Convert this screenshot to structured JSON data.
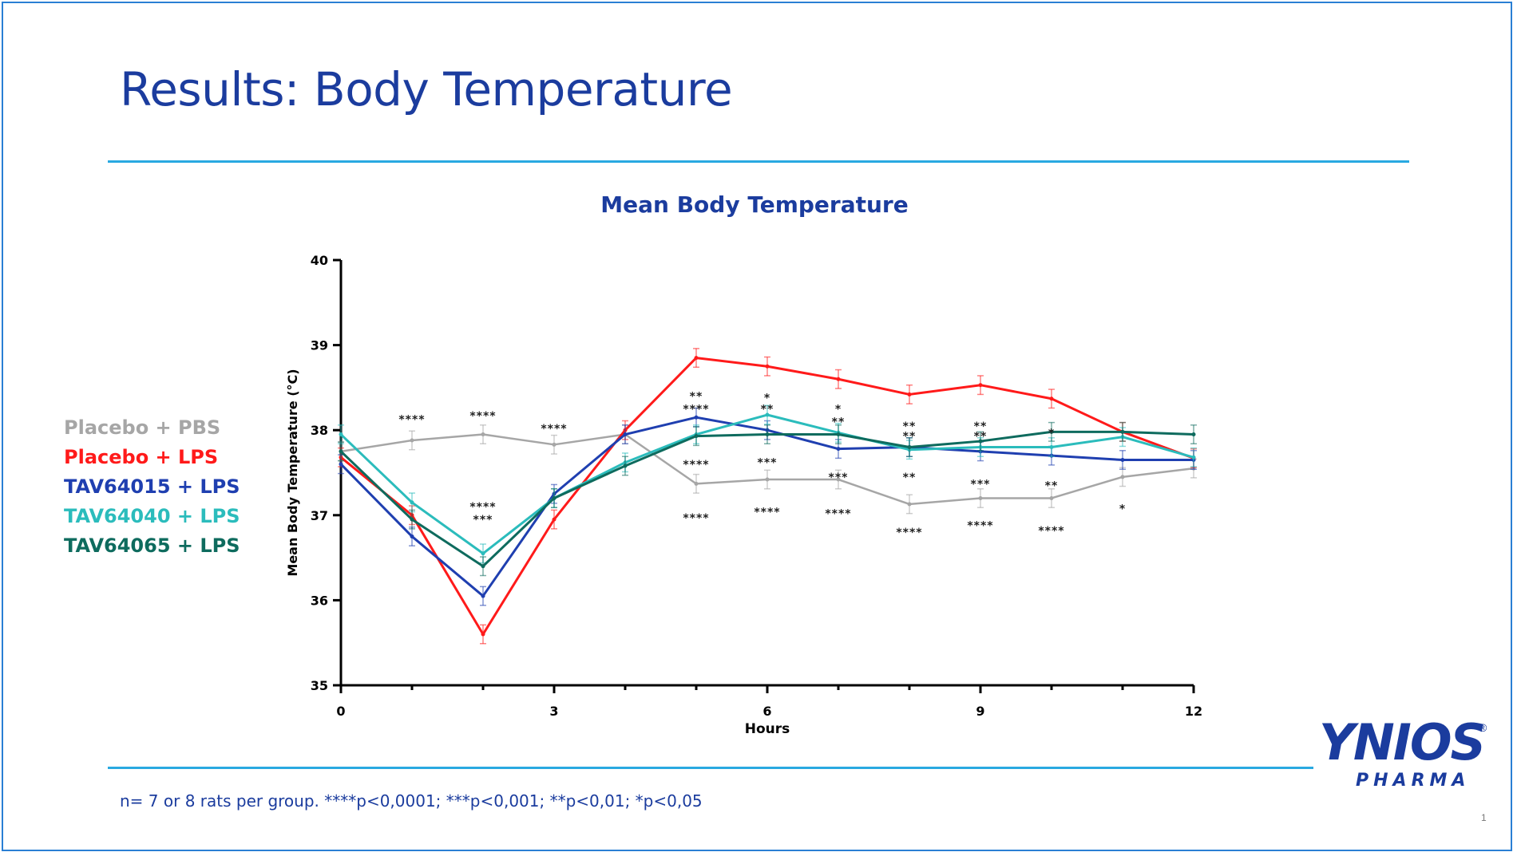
{
  "slide": {
    "title": "Results: Body Temperature",
    "footnote": "n= 7 or 8 rats per group. ****p<0,0001;  ***p<0,001;  **p<0,01;  *p<0,05",
    "page_number": "1",
    "accent_color": "#29a9e1",
    "title_color": "#1b3c9e"
  },
  "logo": {
    "main": "YNIOS",
    "registered": "®",
    "sub": "PHARMA"
  },
  "chart_data": {
    "type": "line",
    "title": "Mean Body Temperature",
    "xlabel": "Hours",
    "ylabel": "Mean Body Temperature (°C)",
    "xlim": [
      0,
      12
    ],
    "ylim": [
      35,
      40
    ],
    "xticks": [
      0,
      3,
      6,
      9,
      12
    ],
    "yticks": [
      35,
      36,
      37,
      38,
      39,
      40
    ],
    "grid": false,
    "legend_position": "left",
    "x": [
      0,
      1,
      2,
      3,
      4,
      5,
      6,
      7,
      8,
      9,
      10,
      11,
      12
    ],
    "series": [
      {
        "name": "Placebo + PBS",
        "color": "#a6a6a6",
        "values": [
          37.75,
          37.88,
          37.95,
          37.83,
          37.95,
          37.37,
          37.42,
          37.42,
          37.13,
          37.2,
          37.2,
          37.45,
          37.55
        ]
      },
      {
        "name": "Placebo + LPS",
        "color": "#ff1a1a",
        "values": [
          37.68,
          37.0,
          35.6,
          36.95,
          38.0,
          38.85,
          38.75,
          38.6,
          38.42,
          38.53,
          38.37,
          37.98,
          37.67
        ]
      },
      {
        "name": "TAV64015 + LPS",
        "color": "#1f3fb0",
        "values": [
          37.6,
          36.75,
          36.05,
          37.25,
          37.95,
          38.15,
          38.0,
          37.78,
          37.8,
          37.75,
          37.7,
          37.65,
          37.65
        ]
      },
      {
        "name": "TAV64040 + LPS",
        "color": "#2bbcbc",
        "values": [
          37.95,
          37.15,
          36.55,
          37.2,
          37.62,
          37.95,
          38.18,
          37.97,
          37.77,
          37.8,
          37.8,
          37.92,
          37.68
        ]
      },
      {
        "name": "TAV64065 + LPS",
        "color": "#0e6b5e",
        "values": [
          37.75,
          36.95,
          36.4,
          37.2,
          37.58,
          37.93,
          37.95,
          37.95,
          37.8,
          37.87,
          37.98,
          37.98,
          37.95
        ]
      }
    ],
    "annotations": [
      {
        "x": 1,
        "y": 38.13,
        "text": "****"
      },
      {
        "x": 2,
        "y": 38.17,
        "text": "****"
      },
      {
        "x": 2,
        "y": 37.1,
        "text": "****"
      },
      {
        "x": 2,
        "y": 36.95,
        "text": "***"
      },
      {
        "x": 3,
        "y": 38.02,
        "text": "****"
      },
      {
        "x": 5,
        "y": 38.4,
        "text": "**"
      },
      {
        "x": 5,
        "y": 38.25,
        "text": "****"
      },
      {
        "x": 5,
        "y": 37.6,
        "text": "****"
      },
      {
        "x": 5,
        "y": 36.97,
        "text": "****"
      },
      {
        "x": 6,
        "y": 38.38,
        "text": "*"
      },
      {
        "x": 6,
        "y": 38.25,
        "text": "**"
      },
      {
        "x": 6,
        "y": 37.62,
        "text": "***"
      },
      {
        "x": 6,
        "y": 37.04,
        "text": "****"
      },
      {
        "x": 7,
        "y": 38.25,
        "text": "*"
      },
      {
        "x": 7,
        "y": 38.1,
        "text": "**"
      },
      {
        "x": 7,
        "y": 37.45,
        "text": "***"
      },
      {
        "x": 7,
        "y": 37.02,
        "text": "****"
      },
      {
        "x": 8,
        "y": 38.05,
        "text": "**"
      },
      {
        "x": 8,
        "y": 37.93,
        "text": "**"
      },
      {
        "x": 8,
        "y": 37.45,
        "text": "**"
      },
      {
        "x": 8,
        "y": 36.8,
        "text": "****"
      },
      {
        "x": 9,
        "y": 38.05,
        "text": "**"
      },
      {
        "x": 9,
        "y": 37.93,
        "text": "**"
      },
      {
        "x": 9,
        "y": 37.37,
        "text": "***"
      },
      {
        "x": 9,
        "y": 36.88,
        "text": "****"
      },
      {
        "x": 10,
        "y": 37.97,
        "text": "*"
      },
      {
        "x": 10,
        "y": 37.35,
        "text": "**"
      },
      {
        "x": 10,
        "y": 36.82,
        "text": "****"
      },
      {
        "x": 11,
        "y": 37.08,
        "text": "*"
      }
    ]
  }
}
